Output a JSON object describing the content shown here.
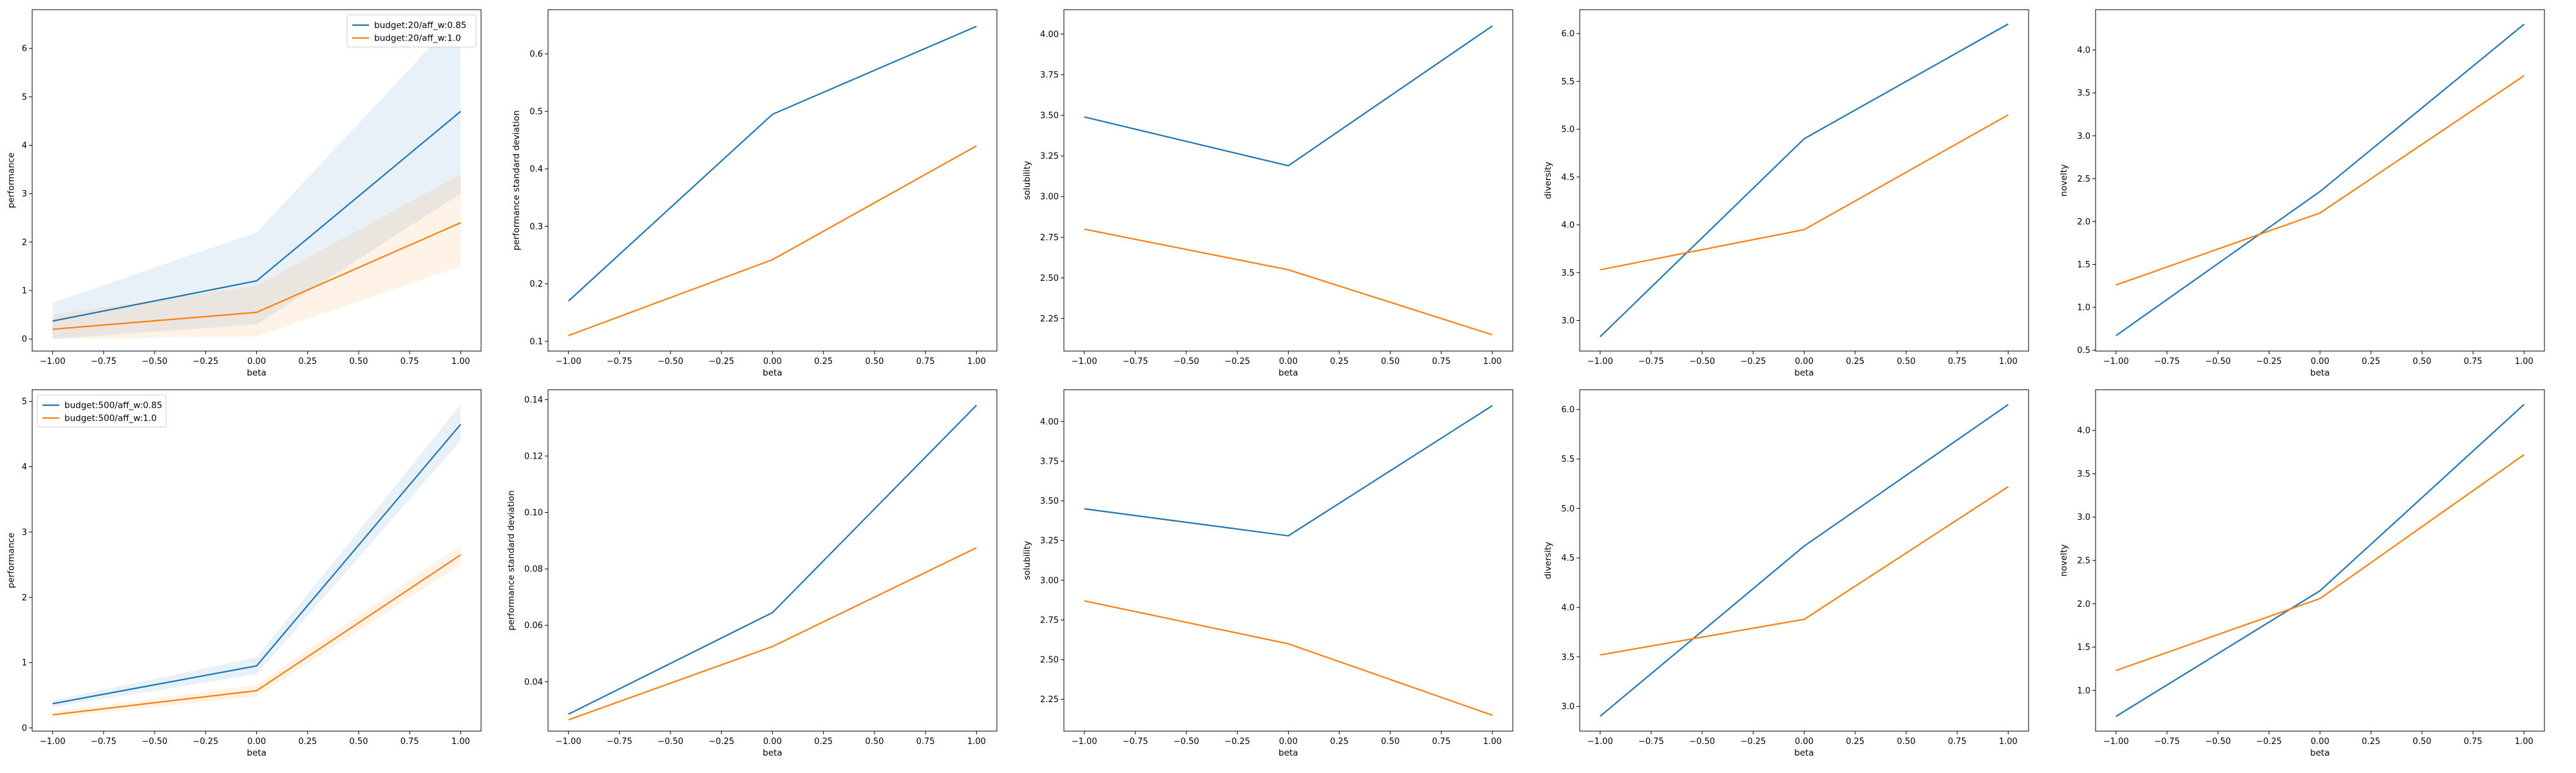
{
  "chart_data": [
    {
      "id": "r0c0",
      "type": "line",
      "xlabel": "beta",
      "ylabel": "performance",
      "xlim": [
        -1.1,
        1.1
      ],
      "ylim": [
        -0.25,
        6.8
      ],
      "x_ticks": [
        -1.0,
        -0.75,
        -0.5,
        -0.25,
        0.0,
        0.25,
        0.5,
        0.75,
        1.0
      ],
      "x_tick_labels": [
        "−1.00",
        "−0.75",
        "−0.50",
        "−0.25",
        "0.00",
        "0.25",
        "0.50",
        "0.75",
        "1.00"
      ],
      "y_ticks": [
        0,
        1,
        2,
        3,
        4,
        5,
        6
      ],
      "y_tick_labels": [
        "0",
        "1",
        "2",
        "3",
        "4",
        "5",
        "6"
      ],
      "legend": "upper right",
      "series": [
        {
          "name": "budget:20/aff_w:0.85",
          "color": "#1f77b4",
          "x": [
            -1,
            0,
            1
          ],
          "y": [
            0.37,
            1.2,
            4.7
          ],
          "band_low": [
            0.0,
            0.3,
            3.0
          ],
          "band_high": [
            0.75,
            2.2,
            6.7
          ]
        },
        {
          "name": "budget:20/aff_w:1.0",
          "color": "#ff7f0e",
          "x": [
            -1,
            0,
            1
          ],
          "y": [
            0.2,
            0.55,
            2.4
          ],
          "band_low": [
            0.0,
            0.05,
            1.5
          ],
          "band_high": [
            0.5,
            1.1,
            3.4
          ]
        }
      ]
    },
    {
      "id": "r0c1",
      "type": "line",
      "xlabel": "beta",
      "ylabel": "performance standard deviation",
      "xlim": [
        -1.1,
        1.1
      ],
      "ylim": [
        0.083,
        0.677
      ],
      "x_ticks": [
        -1.0,
        -0.75,
        -0.5,
        -0.25,
        0.0,
        0.25,
        0.5,
        0.75,
        1.0
      ],
      "x_tick_labels": [
        "−1.00",
        "−0.75",
        "−0.50",
        "−0.25",
        "0.00",
        "0.25",
        "0.50",
        "0.75",
        "1.00"
      ],
      "y_ticks": [
        0.1,
        0.2,
        0.3,
        0.4,
        0.5,
        0.6
      ],
      "y_tick_labels": [
        "0.1",
        "0.2",
        "0.3",
        "0.4",
        "0.5",
        "0.6"
      ],
      "series": [
        {
          "color": "#1f77b4",
          "x": [
            -1,
            0,
            1
          ],
          "y": [
            0.17,
            0.495,
            0.648
          ]
        },
        {
          "color": "#ff7f0e",
          "x": [
            -1,
            0,
            1
          ],
          "y": [
            0.11,
            0.242,
            0.44
          ]
        }
      ]
    },
    {
      "id": "r0c2",
      "type": "line",
      "xlabel": "beta",
      "ylabel": "solubility",
      "xlim": [
        -1.1,
        1.1
      ],
      "ylim": [
        2.05,
        4.15
      ],
      "x_ticks": [
        -1.0,
        -0.75,
        -0.5,
        -0.25,
        0.0,
        0.25,
        0.5,
        0.75,
        1.0
      ],
      "x_tick_labels": [
        "−1.00",
        "−0.75",
        "−0.50",
        "−0.25",
        "0.00",
        "0.25",
        "0.50",
        "0.75",
        "1.00"
      ],
      "y_ticks": [
        2.25,
        2.5,
        2.75,
        3.0,
        3.25,
        3.5,
        3.75,
        4.0
      ],
      "y_tick_labels": [
        "2.25",
        "2.50",
        "2.75",
        "3.00",
        "3.25",
        "3.50",
        "3.75",
        "4.00"
      ],
      "series": [
        {
          "color": "#1f77b4",
          "x": [
            -1,
            0,
            1
          ],
          "y": [
            3.49,
            3.19,
            4.05
          ]
        },
        {
          "color": "#ff7f0e",
          "x": [
            -1,
            0,
            1
          ],
          "y": [
            2.8,
            2.55,
            2.15
          ]
        }
      ]
    },
    {
      "id": "r0c3",
      "type": "line",
      "xlabel": "beta",
      "ylabel": "diversity",
      "xlim": [
        -1.1,
        1.1
      ],
      "ylim": [
        2.68,
        6.25
      ],
      "x_ticks": [
        -1.0,
        -0.75,
        -0.5,
        -0.25,
        0.0,
        0.25,
        0.5,
        0.75,
        1.0
      ],
      "x_tick_labels": [
        "−1.00",
        "−0.75",
        "−0.50",
        "−0.25",
        "0.00",
        "0.25",
        "0.50",
        "0.75",
        "1.00"
      ],
      "y_ticks": [
        3.0,
        3.5,
        4.0,
        4.5,
        5.0,
        5.5,
        6.0
      ],
      "y_tick_labels": [
        "3.0",
        "3.5",
        "4.0",
        "4.5",
        "5.0",
        "5.5",
        "6.0"
      ],
      "series": [
        {
          "color": "#1f77b4",
          "x": [
            -1,
            0,
            1
          ],
          "y": [
            2.83,
            4.9,
            6.1
          ]
        },
        {
          "color": "#ff7f0e",
          "x": [
            -1,
            0,
            1
          ],
          "y": [
            3.53,
            3.95,
            5.15
          ]
        }
      ]
    },
    {
      "id": "r0c4",
      "type": "line",
      "xlabel": "beta",
      "ylabel": "novelty",
      "xlim": [
        -1.1,
        1.1
      ],
      "ylim": [
        0.49,
        4.47
      ],
      "x_ticks": [
        -1.0,
        -0.75,
        -0.5,
        -0.25,
        0.0,
        0.25,
        0.5,
        0.75,
        1.0
      ],
      "x_tick_labels": [
        "−1.00",
        "−0.75",
        "−0.50",
        "−0.25",
        "0.00",
        "0.25",
        "0.50",
        "0.75",
        "1.00"
      ],
      "y_ticks": [
        0.5,
        1.0,
        1.5,
        2.0,
        2.5,
        3.0,
        3.5,
        4.0
      ],
      "y_tick_labels": [
        "0.5",
        "1.0",
        "1.5",
        "2.0",
        "2.5",
        "3.0",
        "3.5",
        "4.0"
      ],
      "series": [
        {
          "color": "#1f77b4",
          "x": [
            -1,
            0,
            1
          ],
          "y": [
            0.67,
            2.35,
            4.3
          ]
        },
        {
          "color": "#ff7f0e",
          "x": [
            -1,
            0,
            1
          ],
          "y": [
            1.26,
            2.1,
            3.7
          ]
        }
      ]
    },
    {
      "id": "r1c0",
      "type": "line",
      "xlabel": "beta",
      "ylabel": "performance",
      "xlim": [
        -1.1,
        1.1
      ],
      "ylim": [
        -0.05,
        5.18
      ],
      "x_ticks": [
        -1.0,
        -0.75,
        -0.5,
        -0.25,
        0.0,
        0.25,
        0.5,
        0.75,
        1.0
      ],
      "x_tick_labels": [
        "−1.00",
        "−0.75",
        "−0.50",
        "−0.25",
        "0.00",
        "0.25",
        "0.50",
        "0.75",
        "1.00"
      ],
      "y_ticks": [
        0,
        1,
        2,
        3,
        4,
        5
      ],
      "y_tick_labels": [
        "0",
        "1",
        "2",
        "3",
        "4",
        "5"
      ],
      "legend": "upper left",
      "series": [
        {
          "name": "budget:500/aff_w:0.85",
          "color": "#1f77b4",
          "x": [
            -1,
            0,
            1
          ],
          "y": [
            0.37,
            0.95,
            4.65
          ],
          "band_low": [
            0.32,
            0.82,
            4.4
          ],
          "band_high": [
            0.42,
            1.08,
            4.95
          ]
        },
        {
          "name": "budget:500/aff_w:1.0",
          "color": "#ff7f0e",
          "x": [
            -1,
            0,
            1
          ],
          "y": [
            0.2,
            0.57,
            2.65
          ],
          "band_low": [
            0.16,
            0.48,
            2.5
          ],
          "band_high": [
            0.24,
            0.66,
            2.8
          ]
        }
      ]
    },
    {
      "id": "r1c1",
      "type": "line",
      "xlabel": "beta",
      "ylabel": "performance standard deviation",
      "xlim": [
        -1.1,
        1.1
      ],
      "ylim": [
        0.0225,
        0.1435
      ],
      "x_ticks": [
        -1.0,
        -0.75,
        -0.5,
        -0.25,
        0.0,
        0.25,
        0.5,
        0.75,
        1.0
      ],
      "x_tick_labels": [
        "−1.00",
        "−0.75",
        "−0.50",
        "−0.25",
        "0.00",
        "0.25",
        "0.50",
        "0.75",
        "1.00"
      ],
      "y_ticks": [
        0.04,
        0.06,
        0.08,
        0.1,
        0.12,
        0.14
      ],
      "y_tick_labels": [
        "0.04",
        "0.06",
        "0.08",
        "0.10",
        "0.12",
        "0.14"
      ],
      "series": [
        {
          "color": "#1f77b4",
          "x": [
            -1,
            0,
            1
          ],
          "y": [
            0.0285,
            0.0645,
            0.138
          ]
        },
        {
          "color": "#ff7f0e",
          "x": [
            -1,
            0,
            1
          ],
          "y": [
            0.0265,
            0.0525,
            0.0875
          ]
        }
      ]
    },
    {
      "id": "r1c2",
      "type": "line",
      "xlabel": "beta",
      "ylabel": "solubility",
      "xlim": [
        -1.1,
        1.1
      ],
      "ylim": [
        2.05,
        4.2
      ],
      "x_ticks": [
        -1.0,
        -0.75,
        -0.5,
        -0.25,
        0.0,
        0.25,
        0.5,
        0.75,
        1.0
      ],
      "x_tick_labels": [
        "−1.00",
        "−0.75",
        "−0.50",
        "−0.25",
        "0.00",
        "0.25",
        "0.50",
        "0.75",
        "1.00"
      ],
      "y_ticks": [
        2.25,
        2.5,
        2.75,
        3.0,
        3.25,
        3.5,
        3.75,
        4.0
      ],
      "y_tick_labels": [
        "2.25",
        "2.50",
        "2.75",
        "3.00",
        "3.25",
        "3.50",
        "3.75",
        "4.00"
      ],
      "series": [
        {
          "color": "#1f77b4",
          "x": [
            -1,
            0,
            1
          ],
          "y": [
            3.45,
            3.28,
            4.1
          ]
        },
        {
          "color": "#ff7f0e",
          "x": [
            -1,
            0,
            1
          ],
          "y": [
            2.87,
            2.6,
            2.15
          ]
        }
      ]
    },
    {
      "id": "r1c3",
      "type": "line",
      "xlabel": "beta",
      "ylabel": "diversity",
      "xlim": [
        -1.1,
        1.1
      ],
      "ylim": [
        2.75,
        6.2
      ],
      "x_ticks": [
        -1.0,
        -0.75,
        -0.5,
        -0.25,
        0.0,
        0.25,
        0.5,
        0.75,
        1.0
      ],
      "x_tick_labels": [
        "−1.00",
        "−0.75",
        "−0.50",
        "−0.25",
        "0.00",
        "0.25",
        "0.50",
        "0.75",
        "1.00"
      ],
      "y_ticks": [
        3.0,
        3.5,
        4.0,
        4.5,
        5.0,
        5.5,
        6.0
      ],
      "y_tick_labels": [
        "3.0",
        "3.5",
        "4.0",
        "4.5",
        "5.0",
        "5.5",
        "6.0"
      ],
      "series": [
        {
          "color": "#1f77b4",
          "x": [
            -1,
            0,
            1
          ],
          "y": [
            2.9,
            4.62,
            6.05
          ]
        },
        {
          "color": "#ff7f0e",
          "x": [
            -1,
            0,
            1
          ],
          "y": [
            3.52,
            3.88,
            5.22
          ]
        }
      ]
    },
    {
      "id": "r1c4",
      "type": "line",
      "xlabel": "beta",
      "ylabel": "novelty",
      "xlim": [
        -1.1,
        1.1
      ],
      "ylim": [
        0.53,
        4.47
      ],
      "x_ticks": [
        -1.0,
        -0.75,
        -0.5,
        -0.25,
        0.0,
        0.25,
        0.5,
        0.75,
        1.0
      ],
      "x_tick_labels": [
        "−1.00",
        "−0.75",
        "−0.50",
        "−0.25",
        "0.00",
        "0.25",
        "0.50",
        "0.75",
        "1.00"
      ],
      "y_ticks": [
        1.0,
        1.5,
        2.0,
        2.5,
        3.0,
        3.5,
        4.0
      ],
      "y_tick_labels": [
        "1.0",
        "1.5",
        "2.0",
        "2.5",
        "3.0",
        "3.5",
        "4.0"
      ],
      "series": [
        {
          "color": "#1f77b4",
          "x": [
            -1,
            0,
            1
          ],
          "y": [
            0.7,
            2.15,
            4.3
          ]
        },
        {
          "color": "#ff7f0e",
          "x": [
            -1,
            0,
            1
          ],
          "y": [
            1.23,
            2.06,
            3.72
          ]
        }
      ]
    }
  ]
}
